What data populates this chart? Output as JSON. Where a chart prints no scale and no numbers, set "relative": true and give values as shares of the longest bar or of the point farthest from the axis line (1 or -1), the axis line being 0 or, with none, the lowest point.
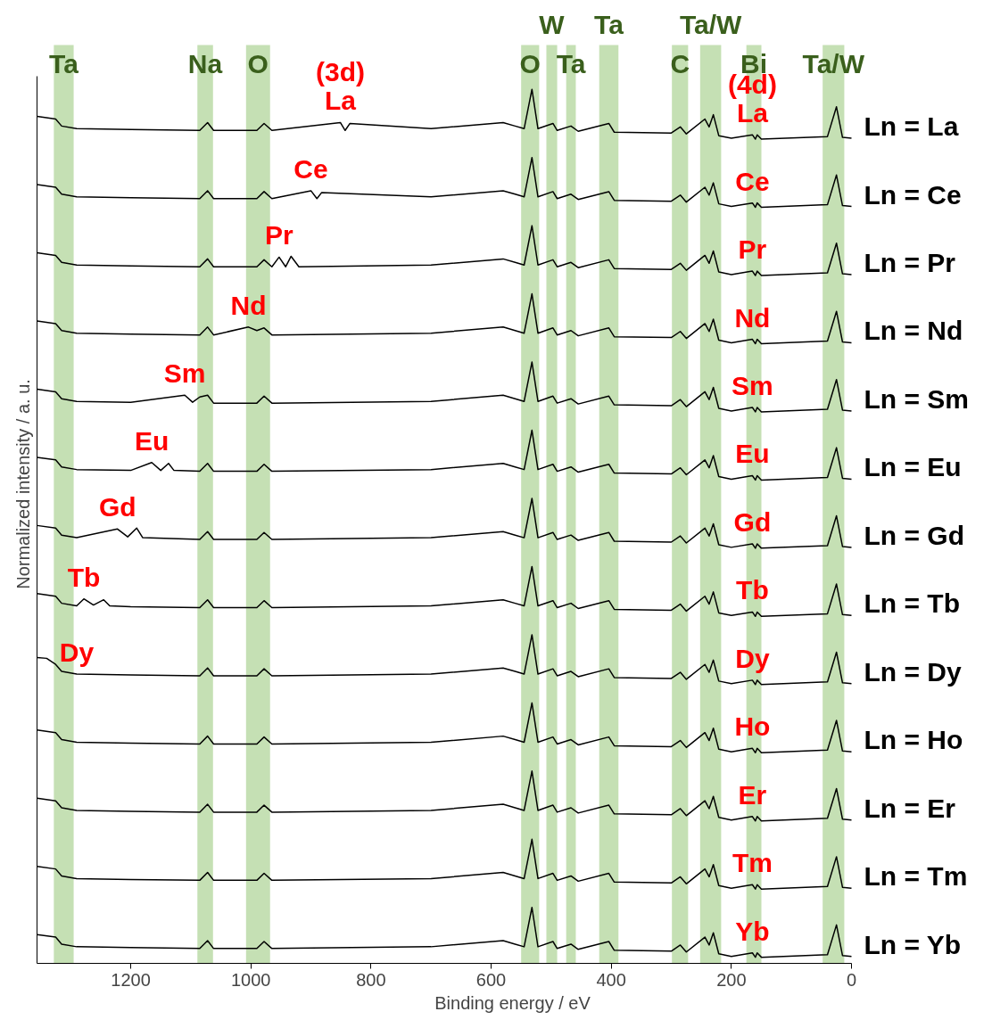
{
  "chart_data": {
    "type": "line",
    "relative": true,
    "xlabel": "Binding energy / eV",
    "ylabel": "Normalized intensity / a. u.",
    "xlim": [
      1356,
      0
    ],
    "xticks": [
      1200,
      1000,
      800,
      600,
      400,
      200,
      0
    ],
    "x": [
      1356,
      1325,
      1315,
      1290,
      1200,
      1085,
      1072,
      1062,
      990,
      978,
      965,
      700,
      580,
      560,
      545,
      532,
      522,
      497,
      490,
      467,
      455,
      404,
      395,
      300,
      285,
      275,
      244,
      237,
      230,
      221,
      200,
      165,
      160,
      157,
      150,
      40,
      25,
      15,
      0
    ],
    "series": [
      {
        "name": "Ln = La",
        "color": "#000000",
        "x": [
          1356,
          1325,
          1315,
          1290,
          1200,
          1085,
          1072,
          1062,
          990,
          978,
          965,
          851,
          843,
          835,
          700,
          580,
          560,
          545,
          532,
          522,
          497,
          490,
          467,
          455,
          404,
          395,
          300,
          285,
          275,
          244,
          237,
          230,
          221,
          200,
          165,
          160,
          157,
          150,
          40,
          25,
          15,
          0
        ],
        "values": [
          0.969,
          0.966,
          0.958,
          0.955,
          0.954,
          0.953,
          0.962,
          0.953,
          0.953,
          0.961,
          0.953,
          0.962,
          0.953,
          0.961,
          0.955,
          0.962,
          0.958,
          0.955,
          1.0,
          0.955,
          0.961,
          0.953,
          0.958,
          0.952,
          0.961,
          0.951,
          0.95,
          0.957,
          0.949,
          0.966,
          0.957,
          0.971,
          0.947,
          0.944,
          0.948,
          0.943,
          0.948,
          0.943,
          0.946,
          0.98,
          0.945,
          0.944
        ]
      },
      {
        "name": "Ln = Ce",
        "color": "#000000",
        "x": [
          1356,
          1325,
          1315,
          1290,
          1200,
          1085,
          1072,
          1062,
          990,
          978,
          965,
          900,
          890,
          882,
          700,
          580,
          560,
          545,
          532,
          522,
          497,
          490,
          467,
          455,
          404,
          395,
          300,
          285,
          275,
          244,
          237,
          230,
          221,
          200,
          165,
          160,
          157,
          150,
          40,
          25,
          15,
          0
        ],
        "values": [
          0.891,
          0.888,
          0.88,
          0.877,
          0.876,
          0.875,
          0.884,
          0.875,
          0.875,
          0.883,
          0.875,
          0.884,
          0.875,
          0.882,
          0.877,
          0.884,
          0.88,
          0.877,
          0.922,
          0.877,
          0.883,
          0.875,
          0.88,
          0.874,
          0.883,
          0.873,
          0.872,
          0.879,
          0.871,
          0.888,
          0.879,
          0.893,
          0.869,
          0.866,
          0.87,
          0.865,
          0.87,
          0.865,
          0.868,
          0.902,
          0.867,
          0.866
        ]
      },
      {
        "name": "Ln = Pr",
        "color": "#000000",
        "x": [
          1356,
          1325,
          1315,
          1290,
          1200,
          1085,
          1072,
          1062,
          990,
          978,
          965,
          953,
          942,
          933,
          920,
          700,
          580,
          560,
          545,
          532,
          522,
          497,
          490,
          467,
          455,
          404,
          395,
          300,
          285,
          275,
          244,
          237,
          230,
          221,
          200,
          165,
          160,
          157,
          150,
          40,
          25,
          15,
          0
        ],
        "values": [
          0.813,
          0.81,
          0.802,
          0.799,
          0.798,
          0.797,
          0.806,
          0.797,
          0.797,
          0.805,
          0.797,
          0.808,
          0.797,
          0.809,
          0.797,
          0.799,
          0.806,
          0.802,
          0.799,
          0.844,
          0.799,
          0.805,
          0.797,
          0.802,
          0.796,
          0.805,
          0.795,
          0.794,
          0.801,
          0.793,
          0.81,
          0.801,
          0.815,
          0.791,
          0.788,
          0.792,
          0.787,
          0.792,
          0.787,
          0.79,
          0.824,
          0.789,
          0.788
        ]
      },
      {
        "name": "Ln = Nd",
        "color": "#000000",
        "x": [
          1356,
          1325,
          1315,
          1290,
          1200,
          1085,
          1072,
          1062,
          1004,
          990,
          978,
          965,
          700,
          580,
          560,
          545,
          532,
          522,
          497,
          490,
          467,
          455,
          404,
          395,
          300,
          285,
          275,
          244,
          237,
          230,
          221,
          200,
          165,
          160,
          157,
          150,
          40,
          25,
          15,
          0
        ],
        "values": [
          0.735,
          0.732,
          0.724,
          0.721,
          0.72,
          0.719,
          0.728,
          0.719,
          0.728,
          0.724,
          0.727,
          0.719,
          0.721,
          0.728,
          0.724,
          0.721,
          0.766,
          0.721,
          0.727,
          0.719,
          0.724,
          0.718,
          0.727,
          0.717,
          0.716,
          0.723,
          0.715,
          0.732,
          0.723,
          0.737,
          0.713,
          0.71,
          0.714,
          0.709,
          0.714,
          0.709,
          0.712,
          0.746,
          0.711,
          0.71
        ]
      },
      {
        "name": "Ln = Sm",
        "color": "#000000",
        "x": [
          1356,
          1325,
          1315,
          1290,
          1200,
          1110,
          1097,
          1085,
          1072,
          1062,
          990,
          978,
          965,
          700,
          580,
          560,
          545,
          532,
          522,
          497,
          490,
          467,
          455,
          404,
          395,
          300,
          285,
          275,
          244,
          237,
          230,
          221,
          200,
          165,
          160,
          157,
          150,
          40,
          25,
          15,
          0
        ],
        "values": [
          0.657,
          0.654,
          0.646,
          0.643,
          0.642,
          0.65,
          0.642,
          0.648,
          0.65,
          0.641,
          0.641,
          0.649,
          0.641,
          0.643,
          0.65,
          0.646,
          0.643,
          0.688,
          0.643,
          0.649,
          0.641,
          0.646,
          0.64,
          0.649,
          0.639,
          0.638,
          0.645,
          0.637,
          0.654,
          0.645,
          0.659,
          0.635,
          0.632,
          0.636,
          0.631,
          0.636,
          0.631,
          0.634,
          0.668,
          0.633,
          0.632
        ]
      },
      {
        "name": "Ln = Eu",
        "color": "#000000",
        "x": [
          1356,
          1325,
          1315,
          1290,
          1200,
          1165,
          1150,
          1137,
          1128,
          1085,
          1072,
          1062,
          990,
          978,
          965,
          700,
          580,
          560,
          545,
          532,
          522,
          497,
          490,
          467,
          455,
          404,
          395,
          300,
          285,
          275,
          244,
          237,
          230,
          221,
          200,
          165,
          160,
          157,
          150,
          40,
          25,
          15,
          0
        ],
        "values": [
          0.579,
          0.576,
          0.568,
          0.565,
          0.564,
          0.573,
          0.564,
          0.572,
          0.564,
          0.563,
          0.572,
          0.563,
          0.563,
          0.571,
          0.563,
          0.565,
          0.572,
          0.568,
          0.565,
          0.61,
          0.565,
          0.571,
          0.563,
          0.568,
          0.562,
          0.571,
          0.561,
          0.56,
          0.567,
          0.559,
          0.576,
          0.567,
          0.581,
          0.557,
          0.554,
          0.558,
          0.553,
          0.558,
          0.553,
          0.556,
          0.59,
          0.555,
          0.554
        ]
      },
      {
        "name": "Ln = Gd",
        "color": "#000000",
        "x": [
          1356,
          1325,
          1315,
          1290,
          1222,
          1205,
          1190,
          1180,
          1085,
          1072,
          1062,
          990,
          978,
          965,
          700,
          580,
          560,
          545,
          532,
          522,
          497,
          490,
          467,
          455,
          404,
          395,
          300,
          285,
          275,
          244,
          237,
          230,
          221,
          200,
          165,
          160,
          157,
          150,
          40,
          25,
          15,
          0
        ],
        "values": [
          0.501,
          0.498,
          0.49,
          0.487,
          0.497,
          0.488,
          0.498,
          0.487,
          0.485,
          0.494,
          0.485,
          0.485,
          0.493,
          0.485,
          0.487,
          0.494,
          0.49,
          0.487,
          0.532,
          0.487,
          0.493,
          0.485,
          0.49,
          0.484,
          0.493,
          0.483,
          0.482,
          0.489,
          0.481,
          0.498,
          0.489,
          0.503,
          0.479,
          0.476,
          0.48,
          0.475,
          0.48,
          0.475,
          0.478,
          0.512,
          0.477,
          0.476
        ]
      },
      {
        "name": "Ln = Tb",
        "color": "#000000",
        "x": [
          1356,
          1325,
          1315,
          1290,
          1278,
          1262,
          1245,
          1235,
          1200,
          1085,
          1072,
          1062,
          990,
          978,
          965,
          700,
          580,
          560,
          545,
          532,
          522,
          497,
          490,
          467,
          455,
          404,
          395,
          300,
          285,
          275,
          244,
          237,
          230,
          221,
          200,
          165,
          160,
          157,
          150,
          40,
          25,
          15,
          0
        ],
        "values": [
          0.423,
          0.42,
          0.412,
          0.409,
          0.417,
          0.41,
          0.416,
          0.409,
          0.408,
          0.407,
          0.416,
          0.407,
          0.407,
          0.415,
          0.407,
          0.409,
          0.416,
          0.412,
          0.409,
          0.454,
          0.409,
          0.415,
          0.407,
          0.412,
          0.406,
          0.415,
          0.405,
          0.404,
          0.411,
          0.403,
          0.42,
          0.411,
          0.425,
          0.401,
          0.398,
          0.402,
          0.397,
          0.402,
          0.397,
          0.4,
          0.434,
          0.399,
          0.398
        ]
      },
      {
        "name": "Ln = Dy",
        "color": "#000000",
        "x": [
          1356,
          1340,
          1325,
          1315,
          1290,
          1200,
          1085,
          1072,
          1062,
          990,
          978,
          965,
          700,
          580,
          560,
          545,
          532,
          522,
          497,
          490,
          467,
          455,
          404,
          395,
          300,
          285,
          275,
          244,
          237,
          230,
          221,
          200,
          165,
          160,
          157,
          150,
          40,
          25,
          15,
          0
        ],
        "values": [
          0.35,
          0.349,
          0.342,
          0.334,
          0.331,
          0.33,
          0.329,
          0.338,
          0.329,
          0.329,
          0.337,
          0.329,
          0.331,
          0.338,
          0.334,
          0.331,
          0.376,
          0.331,
          0.337,
          0.329,
          0.334,
          0.328,
          0.337,
          0.327,
          0.326,
          0.333,
          0.325,
          0.342,
          0.333,
          0.347,
          0.323,
          0.32,
          0.324,
          0.319,
          0.324,
          0.319,
          0.322,
          0.356,
          0.321,
          0.32
        ]
      },
      {
        "name": "Ln = Ho",
        "color": "#000000",
        "values": [
          0.267,
          0.264,
          0.256,
          0.253,
          0.252,
          0.251,
          0.26,
          0.251,
          0.251,
          0.259,
          0.251,
          0.253,
          0.26,
          0.256,
          0.253,
          0.298,
          0.253,
          0.259,
          0.251,
          0.256,
          0.25,
          0.259,
          0.249,
          0.248,
          0.255,
          0.247,
          0.264,
          0.255,
          0.269,
          0.245,
          0.242,
          0.246,
          0.241,
          0.246,
          0.241,
          0.244,
          0.278,
          0.243,
          0.242
        ]
      },
      {
        "name": "Ln = Er",
        "color": "#000000",
        "values": [
          0.189,
          0.186,
          0.178,
          0.175,
          0.174,
          0.173,
          0.182,
          0.173,
          0.173,
          0.181,
          0.173,
          0.175,
          0.182,
          0.178,
          0.175,
          0.22,
          0.175,
          0.181,
          0.173,
          0.178,
          0.172,
          0.181,
          0.171,
          0.17,
          0.177,
          0.169,
          0.186,
          0.177,
          0.191,
          0.167,
          0.164,
          0.168,
          0.163,
          0.168,
          0.163,
          0.166,
          0.2,
          0.165,
          0.164
        ]
      },
      {
        "name": "Ln = Tm",
        "color": "#000000",
        "values": [
          0.111,
          0.108,
          0.1,
          0.097,
          0.096,
          0.095,
          0.104,
          0.095,
          0.095,
          0.103,
          0.095,
          0.097,
          0.104,
          0.1,
          0.097,
          0.142,
          0.097,
          0.103,
          0.095,
          0.1,
          0.094,
          0.103,
          0.093,
          0.092,
          0.099,
          0.091,
          0.108,
          0.099,
          0.113,
          0.089,
          0.086,
          0.09,
          0.085,
          0.09,
          0.085,
          0.088,
          0.122,
          0.087,
          0.086
        ]
      },
      {
        "name": "Ln = Yb",
        "color": "#000000",
        "values": [
          0.033,
          0.03,
          0.022,
          0.019,
          0.018,
          0.017,
          0.026,
          0.017,
          0.017,
          0.025,
          0.017,
          0.019,
          0.026,
          0.022,
          0.019,
          0.064,
          0.019,
          0.025,
          0.017,
          0.022,
          0.016,
          0.025,
          0.015,
          0.014,
          0.021,
          0.013,
          0.03,
          0.021,
          0.035,
          0.011,
          0.008,
          0.012,
          0.007,
          0.012,
          0.007,
          0.01,
          0.044,
          0.009,
          0.008
        ]
      }
    ],
    "bands": [
      {
        "axis": "x",
        "from": 1328,
        "to": 1295,
        "label": "Ta",
        "color": "#c5e0b4"
      },
      {
        "axis": "x",
        "from": 1089,
        "to": 1063,
        "label": "Na",
        "color": "#c5e0b4"
      },
      {
        "axis": "x",
        "from": 1008,
        "to": 968,
        "label": "O",
        "color": "#c5e0b4"
      },
      {
        "axis": "x",
        "from": 550,
        "to": 520,
        "label": "O",
        "color": "#c5e0b4"
      },
      {
        "axis": "x",
        "from": 508,
        "to": 490,
        "label": "W",
        "color": "#c5e0b4"
      },
      {
        "axis": "x",
        "from": 475,
        "to": 459,
        "label": "Ta",
        "color": "#c5e0b4"
      },
      {
        "axis": "x",
        "from": 420,
        "to": 388,
        "label": "Ta",
        "color": "#c5e0b4"
      },
      {
        "axis": "x",
        "from": 299,
        "to": 272,
        "label": "C",
        "color": "#c5e0b4"
      },
      {
        "axis": "x",
        "from": 252,
        "to": 217,
        "label": "Ta/W",
        "color": "#c5e0b4"
      },
      {
        "axis": "x",
        "from": 175,
        "to": 150,
        "label": "Bi",
        "color": "#c5e0b4"
      },
      {
        "axis": "x",
        "from": 48,
        "to": 12,
        "label": "Ta/W",
        "color": "#c5e0b4"
      }
    ],
    "annotations": [
      {
        "text": "(3d)",
        "x": 851,
        "y": 0.962
      },
      {
        "text": "La",
        "x": 851,
        "y": 0.962
      },
      {
        "text": "(4d)",
        "x": 165,
        "y": 0.948
      },
      {
        "text": "La",
        "x": 165,
        "y": 0.948
      },
      {
        "text": "Ce",
        "x": 900,
        "y": 0.884
      },
      {
        "text": "Ce",
        "x": 165,
        "y": 0.87
      },
      {
        "text": "Pr",
        "x": 953,
        "y": 0.808
      },
      {
        "text": "Pr",
        "x": 165,
        "y": 0.792
      },
      {
        "text": "Nd",
        "x": 1004,
        "y": 0.728
      },
      {
        "text": "Nd",
        "x": 165,
        "y": 0.714
      },
      {
        "text": "Sm",
        "x": 1110,
        "y": 0.65
      },
      {
        "text": "Sm",
        "x": 165,
        "y": 0.636
      },
      {
        "text": "Eu",
        "x": 1165,
        "y": 0.573
      },
      {
        "text": "Eu",
        "x": 165,
        "y": 0.558
      },
      {
        "text": "Gd",
        "x": 1222,
        "y": 0.497
      },
      {
        "text": "Gd",
        "x": 165,
        "y": 0.48
      },
      {
        "text": "Tb",
        "x": 1278,
        "y": 0.417
      },
      {
        "text": "Tb",
        "x": 165,
        "y": 0.402
      },
      {
        "text": "Dy",
        "x": 1290,
        "y": 0.331
      },
      {
        "text": "Dy",
        "x": 165,
        "y": 0.324
      },
      {
        "text": "Ho",
        "x": 165,
        "y": 0.246
      },
      {
        "text": "Er",
        "x": 165,
        "y": 0.168
      },
      {
        "text": "Tm",
        "x": 165,
        "y": 0.09
      },
      {
        "text": "Yb",
        "x": 165,
        "y": 0.012
      }
    ]
  }
}
